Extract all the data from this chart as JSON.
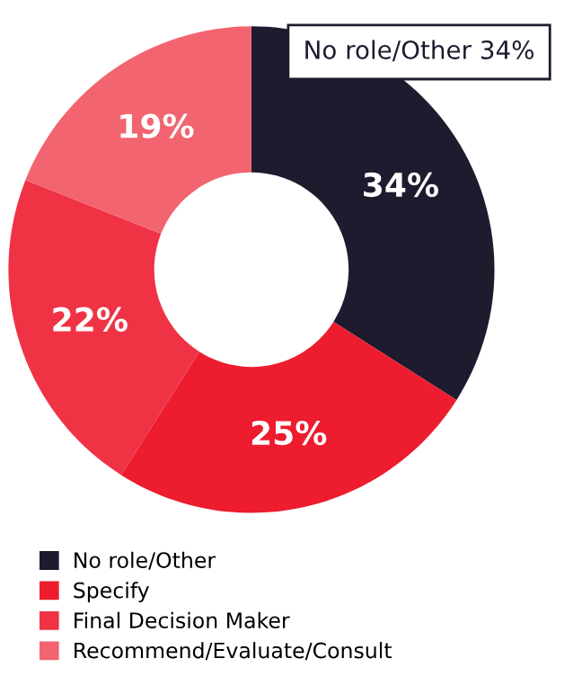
{
  "chart_data": {
    "type": "donut",
    "categories": [
      "No role/Other",
      "Specify",
      "Final Decision Maker",
      "Recommend/Evaluate/Consult"
    ],
    "values": [
      34,
      25,
      22,
      19
    ],
    "colors": [
      "#1e1b2f",
      "#ed1c2e",
      "#ef3345",
      "#f2646f"
    ],
    "value_labels": [
      "34%",
      "25%",
      "22%",
      "19%"
    ],
    "legend": "bottom",
    "annotations": [
      "No role/Other 34%"
    ]
  }
}
